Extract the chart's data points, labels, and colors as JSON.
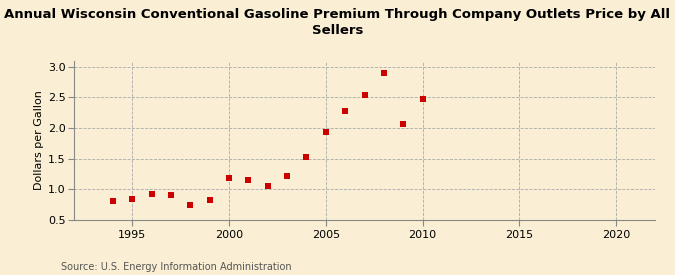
{
  "title": "Annual Wisconsin Conventional Gasoline Premium Through Company Outlets Price by All\nSellers",
  "ylabel": "Dollars per Gallon",
  "source": "Source: U.S. Energy Information Administration",
  "xlim": [
    1992,
    2022
  ],
  "ylim": [
    0.5,
    3.1
  ],
  "yticks": [
    0.5,
    1.0,
    1.5,
    2.0,
    2.5,
    3.0
  ],
  "xticks": [
    1995,
    2000,
    2005,
    2010,
    2015,
    2020
  ],
  "years": [
    1994,
    1995,
    1996,
    1997,
    1998,
    1999,
    2000,
    2001,
    2002,
    2003,
    2004,
    2005,
    2006,
    2007,
    2008,
    2009,
    2010
  ],
  "values": [
    0.81,
    0.84,
    0.93,
    0.9,
    0.75,
    0.83,
    1.19,
    1.15,
    1.06,
    1.22,
    1.52,
    1.94,
    2.27,
    2.54,
    2.89,
    2.06,
    2.48
  ],
  "marker_color": "#cc0000",
  "marker_size": 4,
  "bg_color": "#faefd4",
  "plot_bg_color": "#faefd4",
  "grid_color": "#aaaaaa",
  "spine_color": "#888888",
  "title_fontsize": 9.5,
  "label_fontsize": 8,
  "tick_fontsize": 8,
  "source_fontsize": 7
}
